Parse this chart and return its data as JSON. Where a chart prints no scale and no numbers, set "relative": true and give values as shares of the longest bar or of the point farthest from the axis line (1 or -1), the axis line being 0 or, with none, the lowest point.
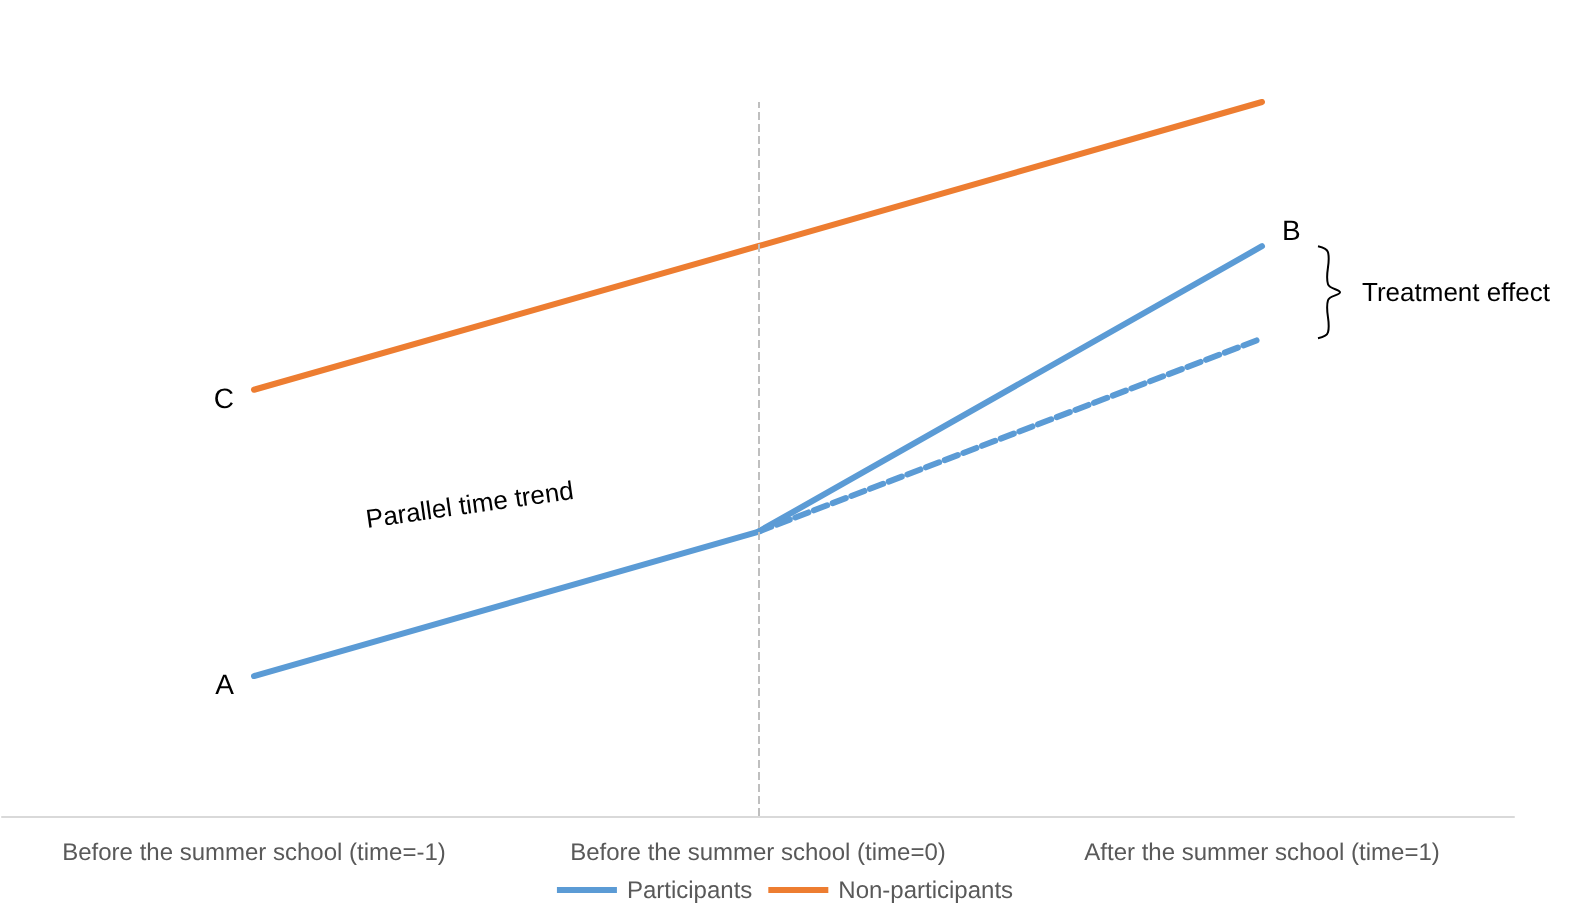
{
  "chart_data": {
    "type": "line",
    "relative": true,
    "categories": [
      "Before the summer school (time=-1)",
      "Before the summer school (time=0)",
      "After the summer school (time=1)"
    ],
    "series": [
      {
        "name": "Participants",
        "color": "#5b9bd5",
        "values": [
          0.196,
          0.398,
          0.798
        ]
      },
      {
        "name": "Non-participants",
        "color": "#ed7d31",
        "values": [
          0.597,
          0.798,
          1.0
        ]
      },
      {
        "color": "#5b9bd5",
        "values": [
          null,
          0.398,
          0.669
        ],
        "line_style": "dashed"
      }
    ],
    "ref_lines": [
      {
        "axis": "x",
        "value": "Before the summer school (time=0)",
        "color": "#bfbfbf",
        "line_style": "dashed"
      }
    ],
    "annotations": [
      {
        "text": "A",
        "x": "Before the summer school (time=-1)",
        "y": 0.196
      },
      {
        "text": "C",
        "x": "Before the summer school (time=-1)",
        "y": 0.597
      },
      {
        "text": "B",
        "x": "After the summer school (time=1)",
        "y": 0.798
      },
      "Parallel time trend",
      "Treatment effect"
    ],
    "legend": "bottom",
    "grid": false,
    "marker": "none",
    "line_style": "solid"
  }
}
